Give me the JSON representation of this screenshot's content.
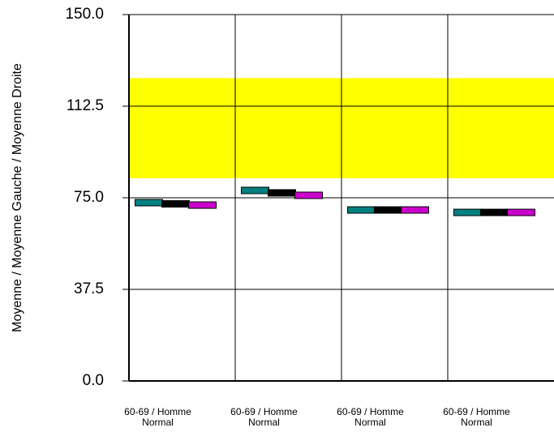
{
  "chart_data": {
    "type": "bar",
    "ylabel": "Moyenne  / Moyenne  Gauche / Moyenne  Droite",
    "xlabel": "",
    "ylim": [
      0,
      150
    ],
    "yticks": [
      "0.0",
      "37.5",
      "75.0",
      "112.5",
      "150.0"
    ],
    "grid": true,
    "reference_band": {
      "from": 83,
      "to": 124,
      "color": "#ffff00"
    },
    "categories": [
      {
        "line1": "60-69 / Homme",
        "line2": "Normal"
      },
      {
        "line1": "60-69 / Homme",
        "line2": "Normal"
      },
      {
        "line1": "60-69 / Homme",
        "line2": "Normal"
      },
      {
        "line1": "60-69 / Homme",
        "line2": "Normal"
      }
    ],
    "series": [
      {
        "color": "#008080",
        "values": [
          73,
          78,
          70,
          69
        ]
      },
      {
        "color": "#000000",
        "values": [
          72.5,
          77,
          70,
          69
        ]
      },
      {
        "color": "#cc00cc",
        "values": [
          72,
          76,
          70,
          69
        ]
      }
    ]
  }
}
